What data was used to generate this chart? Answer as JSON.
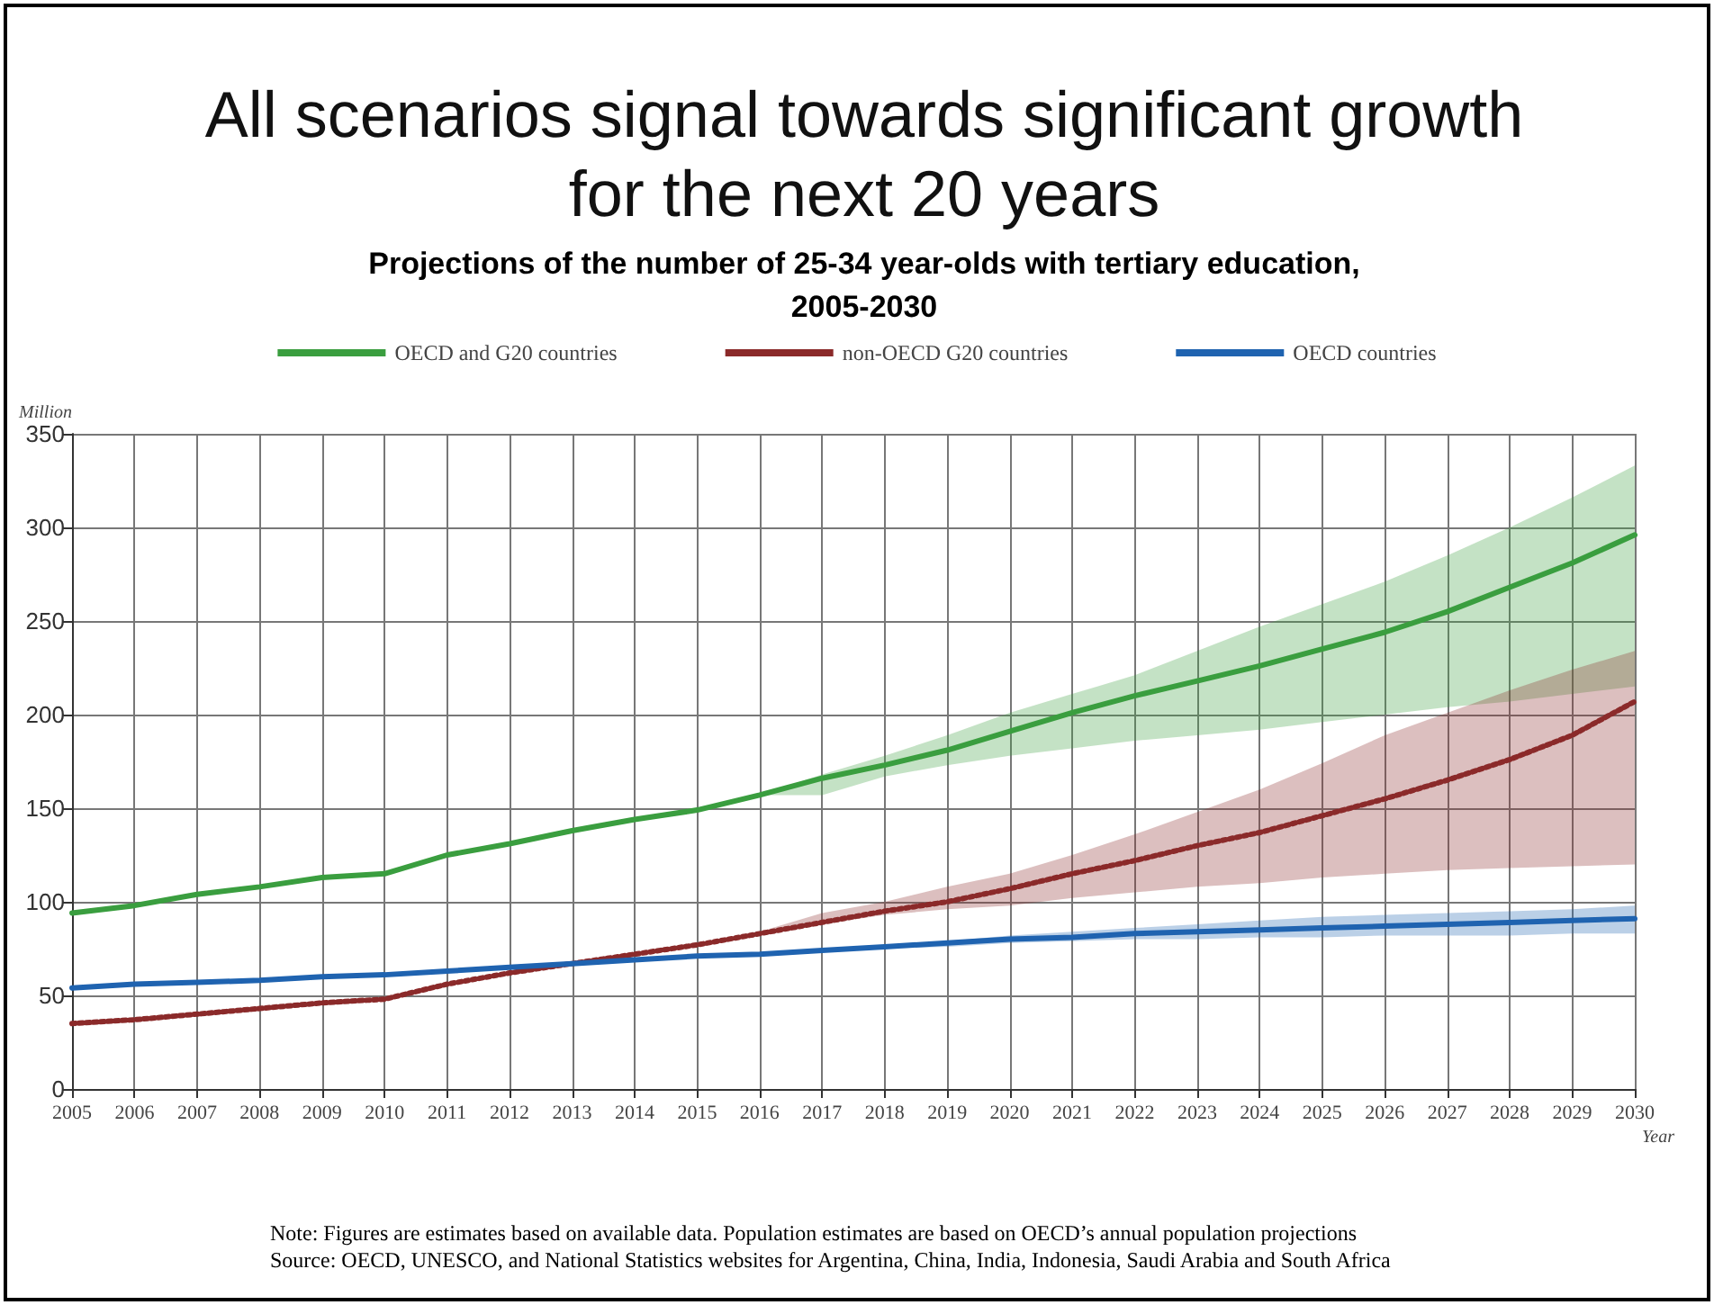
{
  "chart_data": {
    "type": "line",
    "title": "All scenarios signal towards significant growth for the next 20 years",
    "subtitle": "Projections of the number of 25-34 year-olds with tertiary education, 2005-2030",
    "ylabel": "Million",
    "xlabel": "Year",
    "x": [
      2005,
      2006,
      2007,
      2008,
      2009,
      2010,
      2011,
      2012,
      2013,
      2014,
      2015,
      2016,
      2017,
      2018,
      2019,
      2020,
      2021,
      2022,
      2023,
      2024,
      2025,
      2026,
      2027,
      2028,
      2029,
      2030
    ],
    "series": [
      {
        "name": "OECD and G20 countries",
        "color": "#3a9e3f",
        "line_style": "solid",
        "values": [
          94,
          98,
          104,
          108,
          113,
          115,
          125,
          131,
          138,
          144,
          149,
          157,
          166,
          173,
          181,
          191,
          201,
          210,
          218,
          226,
          235,
          244,
          255,
          268,
          281,
          296
        ],
        "lower": [
          null,
          null,
          null,
          null,
          null,
          null,
          null,
          null,
          null,
          null,
          null,
          157,
          157,
          167,
          173,
          178,
          182,
          186,
          189,
          192,
          196,
          200,
          204,
          207,
          211,
          215
        ],
        "upper": [
          null,
          null,
          null,
          null,
          null,
          null,
          null,
          null,
          null,
          null,
          null,
          157,
          168,
          178,
          189,
          201,
          211,
          221,
          234,
          247,
          259,
          271,
          285,
          300,
          316,
          333
        ]
      },
      {
        "name": "non-OECD G20 countries",
        "color": "#8b2a2a",
        "line_style": "dotted",
        "values": [
          35,
          37,
          40,
          43,
          46,
          48,
          56,
          62,
          67,
          72,
          77,
          83,
          89,
          95,
          100,
          107,
          115,
          122,
          130,
          137,
          146,
          155,
          165,
          176,
          189,
          207
        ],
        "lower": [
          null,
          null,
          null,
          null,
          null,
          null,
          null,
          null,
          null,
          null,
          77,
          82,
          88,
          93,
          96,
          98,
          102,
          105,
          108,
          110,
          113,
          115,
          117,
          118,
          119,
          120
        ],
        "upper": [
          null,
          null,
          null,
          null,
          null,
          null,
          null,
          null,
          null,
          null,
          77,
          84,
          94,
          100,
          108,
          115,
          125,
          136,
          148,
          160,
          174,
          189,
          201,
          213,
          224,
          234
        ]
      },
      {
        "name": "OECD countries",
        "color": "#1f63b0",
        "line_style": "solid",
        "values": [
          54,
          56,
          57,
          58,
          60,
          61,
          63,
          65,
          67,
          69,
          71,
          72,
          74,
          76,
          78,
          80,
          81,
          83,
          84,
          85,
          86,
          87,
          88,
          89,
          90,
          91
        ],
        "lower": [
          null,
          null,
          null,
          null,
          null,
          null,
          null,
          null,
          null,
          null,
          null,
          72,
          73,
          75,
          76,
          78,
          79,
          80,
          80,
          81,
          81,
          82,
          82,
          82,
          83,
          83
        ],
        "upper": [
          null,
          null,
          null,
          null,
          null,
          null,
          null,
          null,
          null,
          null,
          null,
          72,
          75,
          77,
          79,
          82,
          84,
          86,
          88,
          90,
          92,
          93,
          94,
          95,
          96,
          98
        ]
      }
    ],
    "xlim": [
      2005,
      2030
    ],
    "xticks": [
      2005,
      2006,
      2007,
      2008,
      2009,
      2010,
      2011,
      2012,
      2013,
      2014,
      2015,
      2016,
      2017,
      2018,
      2019,
      2020,
      2021,
      2022,
      2023,
      2024,
      2025,
      2026,
      2027,
      2028,
      2029,
      2030
    ],
    "ylim": [
      0,
      350
    ],
    "yticks": [
      0,
      50,
      100,
      150,
      200,
      250,
      300,
      350
    ],
    "grid": true,
    "legend": "top",
    "marker": "none",
    "annotations": [
      "Note: Figures are estimates based on available data. Population estimates are based on OECD’s annual population projections",
      "Source: OECD, UNESCO, and National Statistics websites for Argentina, China, India, Indonesia, Saudi Arabia and South Africa"
    ]
  }
}
